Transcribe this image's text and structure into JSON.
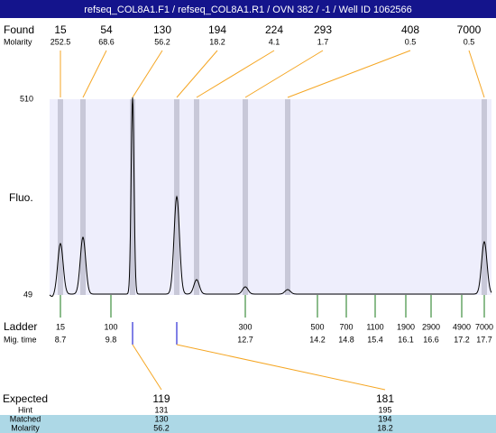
{
  "header": {
    "title": "refseq_COL8A1.F1 / refseq_COL8A1.R1 / OVN 382 / -1 / Well ID 1062566"
  },
  "found": {
    "label": "Found",
    "sizes": [
      15,
      54,
      130,
      194,
      224,
      293,
      408,
      7000
    ],
    "molarity_label": "Molarity",
    "molarity": [
      252.5,
      68.6,
      56.2,
      18.2,
      4.1,
      1.7,
      0.5,
      0.5
    ]
  },
  "axis": {
    "top": 510,
    "bottom": 49,
    "label": "Fluo."
  },
  "ladder": {
    "label": "Ladder",
    "sizes": [
      15,
      100,
      300,
      500,
      700,
      1100,
      1900,
      2900,
      4900,
      7000
    ],
    "mig_label": "Mig. time",
    "mig_times": [
      8.7,
      9.8,
      12.7,
      14.2,
      14.8,
      15.4,
      16.1,
      16.6,
      17.2,
      17.7
    ]
  },
  "expected": {
    "rows": [
      {
        "label": "Expected",
        "values": [
          119,
          181
        ]
      },
      {
        "label": "Hint",
        "values": [
          131,
          195
        ]
      },
      {
        "label": "Matched",
        "values": [
          130,
          194
        ]
      },
      {
        "label": "Molarity",
        "values": [
          56.2,
          18.2
        ]
      }
    ]
  }
}
